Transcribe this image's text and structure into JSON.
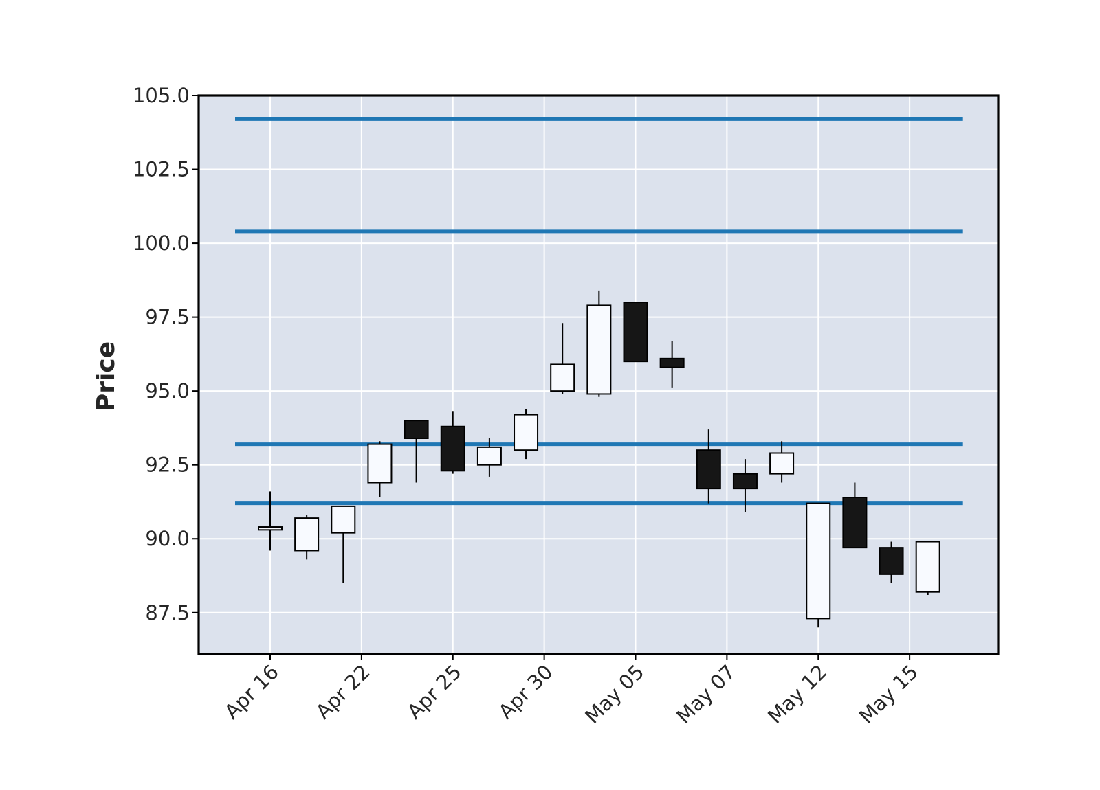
{
  "chart_data": {
    "type": "candlestick",
    "title": "",
    "xlabel": "",
    "ylabel": "Price",
    "ylim": [
      86.1,
      105.0
    ],
    "yticks": [
      87.5,
      90.0,
      92.5,
      95.0,
      97.5,
      100.0,
      102.5,
      105.0
    ],
    "ytick_labels": [
      "87.5",
      "90.0",
      "92.5",
      "95.0",
      "97.5",
      "100.0",
      "102.5",
      "105.0"
    ],
    "xticks": [
      {
        "index": 0,
        "label": "Apr 16"
      },
      {
        "index": 2.5,
        "label": "Apr 22"
      },
      {
        "index": 5,
        "label": "Apr 25"
      },
      {
        "index": 7.5,
        "label": "Apr 30"
      },
      {
        "index": 10,
        "label": "May 05"
      },
      {
        "index": 12.5,
        "label": "May 07"
      },
      {
        "index": 15,
        "label": "May 12"
      },
      {
        "index": 17.5,
        "label": "May 15"
      }
    ],
    "grid": true,
    "colors": {
      "background": "#dce2ed",
      "grid": "#ffffff",
      "up_body": "#f8faff",
      "down_body": "#161616",
      "edge": "#000000",
      "hline": "#1f77b4"
    },
    "hlines": [
      104.2,
      100.4,
      93.2,
      91.2
    ],
    "candles": [
      {
        "open": 90.3,
        "high": 91.6,
        "low": 89.6,
        "close": 90.4
      },
      {
        "open": 89.6,
        "high": 90.8,
        "low": 89.3,
        "close": 90.7
      },
      {
        "open": 90.2,
        "high": 91.1,
        "low": 88.5,
        "close": 91.1
      },
      {
        "open": 91.9,
        "high": 93.3,
        "low": 91.4,
        "close": 93.2
      },
      {
        "open": 94.0,
        "high": 94.0,
        "low": 91.9,
        "close": 93.4
      },
      {
        "open": 93.8,
        "high": 94.3,
        "low": 92.2,
        "close": 92.3
      },
      {
        "open": 92.5,
        "high": 93.4,
        "low": 92.1,
        "close": 93.1
      },
      {
        "open": 93.0,
        "high": 94.4,
        "low": 92.7,
        "close": 94.2
      },
      {
        "open": 95.0,
        "high": 97.3,
        "low": 94.9,
        "close": 95.9
      },
      {
        "open": 94.9,
        "high": 98.4,
        "low": 94.8,
        "close": 97.9
      },
      {
        "open": 98.0,
        "high": 98.0,
        "low": 96.0,
        "close": 96.0
      },
      {
        "open": 96.1,
        "high": 96.7,
        "low": 95.1,
        "close": 95.8
      },
      {
        "open": 93.0,
        "high": 93.7,
        "low": 91.2,
        "close": 91.7
      },
      {
        "open": 92.2,
        "high": 92.7,
        "low": 90.9,
        "close": 91.7
      },
      {
        "open": 92.2,
        "high": 93.3,
        "low": 91.9,
        "close": 92.9
      },
      {
        "open": 87.3,
        "high": 91.2,
        "low": 87.0,
        "close": 91.2
      },
      {
        "open": 91.4,
        "high": 91.9,
        "low": 89.7,
        "close": 89.7
      },
      {
        "open": 89.7,
        "high": 89.9,
        "low": 88.5,
        "close": 88.8
      },
      {
        "open": 88.2,
        "high": 89.9,
        "low": 88.1,
        "close": 89.9
      }
    ]
  }
}
